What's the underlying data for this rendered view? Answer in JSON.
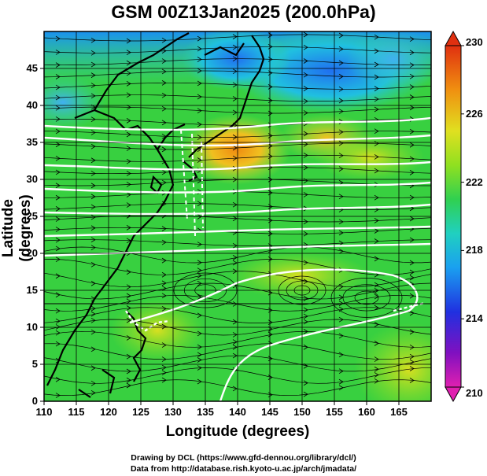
{
  "title": "GSM 00Z13Jan2025 (200.0hPa)",
  "xlabel": "Longitude (degrees)",
  "ylabel": "Latitude  (degrees)",
  "credits": [
    "Drawing by DCL (https://www.gfd-dennou.org/library/dcl/)",
    "Data from http://database.rish.kyoto-u.ac.jp/arch/jmadata/"
  ],
  "chart_data": {
    "type": "heatmap",
    "variable": "temperature field with wind streamlines",
    "xlim": [
      110,
      170
    ],
    "ylim": [
      0,
      50
    ],
    "x_ticks": [
      110,
      115,
      120,
      125,
      130,
      135,
      140,
      145,
      150,
      155,
      160,
      165
    ],
    "y_ticks": [
      0,
      5,
      10,
      15,
      20,
      25,
      30,
      35,
      40,
      45
    ],
    "colorbar": {
      "range": [
        210,
        230
      ],
      "ticks": [
        210,
        214,
        218,
        222,
        226,
        230
      ],
      "colors": [
        "#e020b0",
        "#6010c0",
        "#2030e0",
        "#1aa0f0",
        "#20d0c0",
        "#30d050",
        "#90e020",
        "#f0e020",
        "#f09010",
        "#e03010"
      ]
    },
    "warm_core": {
      "lon": 141,
      "lat": 34,
      "value": 227
    },
    "cold_region": {
      "lon": 150,
      "lat": 48,
      "value": 216
    },
    "field_description_points": [
      {
        "lon": 112,
        "lat": 42,
        "value": 218
      },
      {
        "lon": 140,
        "lat": 48,
        "value": 216
      },
      {
        "lon": 155,
        "lat": 36,
        "value": 225
      },
      {
        "lon": 160,
        "lat": 25,
        "value": 222
      },
      {
        "lon": 130,
        "lat": 10,
        "value": 222
      },
      {
        "lon": 165,
        "lat": 5,
        "value": 223
      }
    ]
  },
  "colors": {
    "land": "#000000",
    "contour": "#ffffff",
    "frame": "#000000"
  }
}
